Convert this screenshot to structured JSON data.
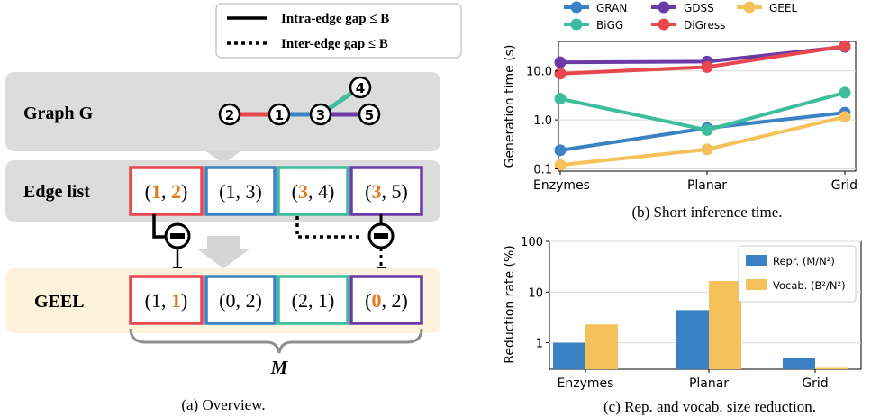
{
  "colors": {
    "red": "#e8474e",
    "blue": "#3a82c4",
    "teal": "#3dbd9c",
    "purple": "#6a3aa6",
    "orange": "#e07b21",
    "yellow": "#f5c15a",
    "panel_gray": "#dcdcdc",
    "geel_bg": "#fdf3dc"
  },
  "legend_a": {
    "intra": "Intra-edge gap ≤ B",
    "inter": "Inter-edge gap ≤ B"
  },
  "panel_a": {
    "graph_label": "Graph G",
    "edge_list_label": "Edge list",
    "geel_label": "GEEL",
    "brace_label": "M",
    "caption": "(a) Overview.",
    "nodes": [
      "2",
      "1",
      "3",
      "4",
      "5"
    ],
    "edge_list": [
      {
        "a": "1",
        "b": "2",
        "a_hl": true,
        "b_hl": true
      },
      {
        "a": "1",
        "b": "3",
        "a_hl": false,
        "b_hl": false
      },
      {
        "a": "3",
        "b": "4",
        "a_hl": true,
        "b_hl": false
      },
      {
        "a": "3",
        "b": "5",
        "a_hl": true,
        "b_hl": false
      }
    ],
    "geel_list": [
      {
        "a": "1",
        "b": "1",
        "a_hl": false,
        "b_hl": true
      },
      {
        "a": "0",
        "b": "2",
        "a_hl": false,
        "b_hl": false
      },
      {
        "a": "2",
        "b": "1",
        "a_hl": false,
        "b_hl": false
      },
      {
        "a": "0",
        "b": "2",
        "a_hl": true,
        "b_hl": false
      }
    ]
  },
  "chart_data": [
    {
      "type": "line",
      "caption": "(b) Short inference time.",
      "ylabel": "Generation time (s)",
      "yscale": "log",
      "ylim": [
        0.09,
        40
      ],
      "categories": [
        "Enzymes",
        "Planar",
        "Grid"
      ],
      "yticks": [
        "0.1",
        "1.0",
        "10.0"
      ],
      "legend_position": "top",
      "series": [
        {
          "name": "GRAN",
          "color": "#3a82c4",
          "values": [
            0.24,
            0.68,
            1.4
          ]
        },
        {
          "name": "BiGG",
          "color": "#3dbd9c",
          "values": [
            2.7,
            0.62,
            3.6
          ]
        },
        {
          "name": "GDSS",
          "color": "#6a3aa6",
          "values": [
            15,
            15.5,
            31
          ]
        },
        {
          "name": "DiGress",
          "color": "#e8474e",
          "values": [
            8.8,
            12,
            32
          ]
        },
        {
          "name": "GEEL",
          "color": "#f5c15a",
          "values": [
            0.12,
            0.25,
            1.15
          ]
        }
      ]
    },
    {
      "type": "bar",
      "caption": "(c) Rep. and vocab. size reduction.",
      "ylabel": "Reduction rate (%)",
      "yscale": "log",
      "ylim": [
        0.3,
        100
      ],
      "categories": [
        "Enzymes",
        "Planar",
        "Grid"
      ],
      "yticks": [
        "1",
        "10",
        "100"
      ],
      "legend_position": "top-right",
      "series": [
        {
          "name": "Repr. (M/N²)",
          "color": "#3a82c4",
          "values": [
            1.0,
            4.4,
            0.5
          ]
        },
        {
          "name": "Vocab. (B²/N²)",
          "color": "#f5c15a",
          "values": [
            2.3,
            16.5,
            0.32
          ]
        }
      ]
    }
  ]
}
